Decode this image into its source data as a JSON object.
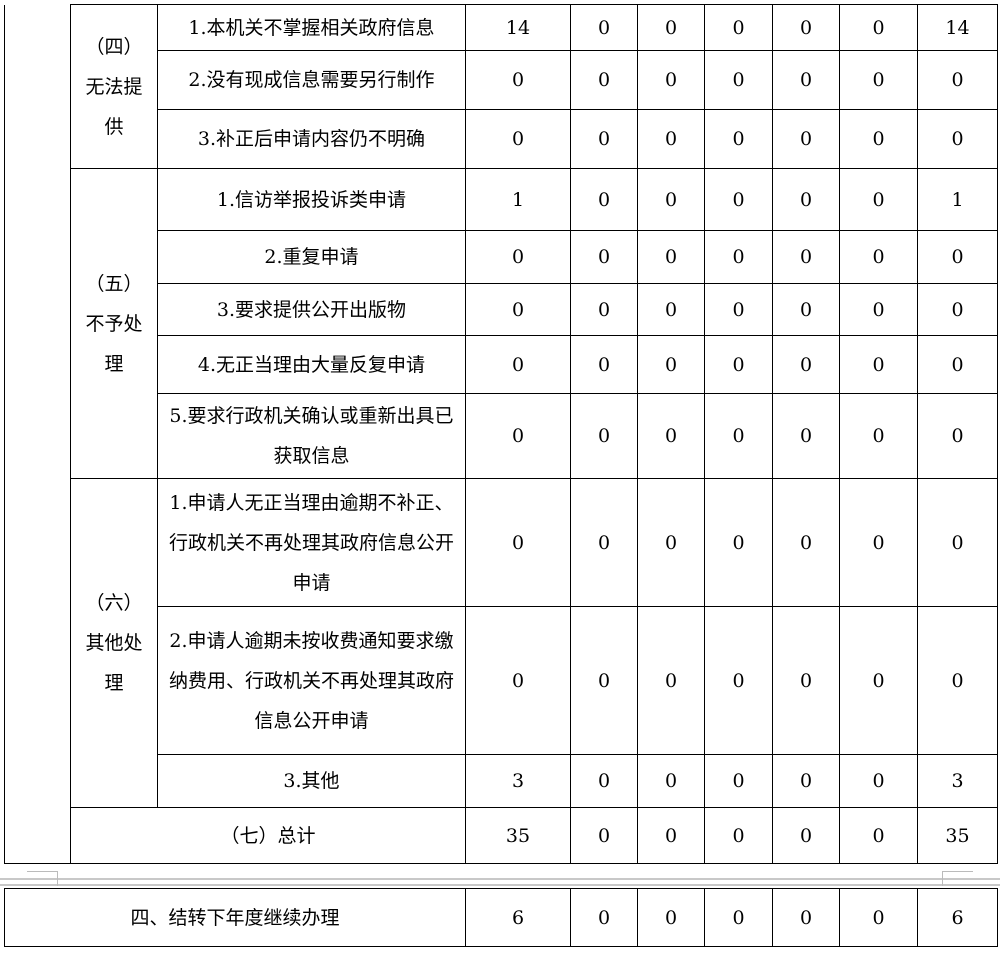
{
  "groups": [
    {
      "label": "（四）无法提供",
      "rows": [
        {
          "item": "1.本机关不掌握相关政府信息",
          "values": [
            "14",
            "0",
            "0",
            "0",
            "0",
            "0",
            "14"
          ]
        },
        {
          "item": "2.没有现成信息需要另行制作",
          "values": [
            "0",
            "0",
            "0",
            "0",
            "0",
            "0",
            "0"
          ]
        },
        {
          "item": "3.补正后申请内容仍不明确",
          "values": [
            "0",
            "0",
            "0",
            "0",
            "0",
            "0",
            "0"
          ]
        }
      ]
    },
    {
      "label": "（五）不予处理",
      "rows": [
        {
          "item": "1.信访举报投诉类申请",
          "values": [
            "1",
            "0",
            "0",
            "0",
            "0",
            "0",
            "1"
          ]
        },
        {
          "item": "2.重复申请",
          "values": [
            "0",
            "0",
            "0",
            "0",
            "0",
            "0",
            "0"
          ]
        },
        {
          "item": "3.要求提供公开出版物",
          "values": [
            "0",
            "0",
            "0",
            "0",
            "0",
            "0",
            "0"
          ]
        },
        {
          "item": "4.无正当理由大量反复申请",
          "values": [
            "0",
            "0",
            "0",
            "0",
            "0",
            "0",
            "0"
          ]
        },
        {
          "item": "5.要求行政机关确认或重新出具已获取信息",
          "values": [
            "0",
            "0",
            "0",
            "0",
            "0",
            "0",
            "0"
          ]
        }
      ]
    },
    {
      "label": "（六）其他处理",
      "rows": [
        {
          "item": "1.申请人无正当理由逾期不补正、行政机关不再处理其政府信息公开申请",
          "values": [
            "0",
            "0",
            "0",
            "0",
            "0",
            "0",
            "0"
          ]
        },
        {
          "item": "2.申请人逾期未按收费通知要求缴纳费用、行政机关不再处理其政府信息公开申请",
          "values": [
            "0",
            "0",
            "0",
            "0",
            "0",
            "0",
            "0"
          ]
        },
        {
          "item": "3.其他",
          "values": [
            "3",
            "0",
            "0",
            "0",
            "0",
            "0",
            "3"
          ]
        }
      ]
    }
  ],
  "total": {
    "label": "（七）总计",
    "values": [
      "35",
      "0",
      "0",
      "0",
      "0",
      "0",
      "35"
    ]
  },
  "carryover": {
    "label": "四、结转下年度继续办理",
    "values": [
      "6",
      "0",
      "0",
      "0",
      "0",
      "0",
      "6"
    ]
  }
}
